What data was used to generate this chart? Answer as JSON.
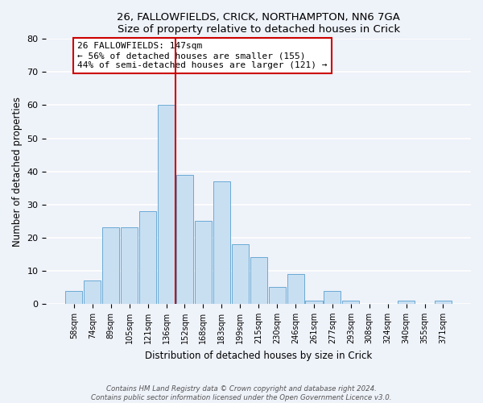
{
  "title_line1": "26, FALLOWFIELDS, CRICK, NORTHAMPTON, NN6 7GA",
  "title_line2": "Size of property relative to detached houses in Crick",
  "xlabel": "Distribution of detached houses by size in Crick",
  "ylabel": "Number of detached properties",
  "bar_labels": [
    "58sqm",
    "74sqm",
    "89sqm",
    "105sqm",
    "121sqm",
    "136sqm",
    "152sqm",
    "168sqm",
    "183sqm",
    "199sqm",
    "215sqm",
    "230sqm",
    "246sqm",
    "261sqm",
    "277sqm",
    "293sqm",
    "308sqm",
    "324sqm",
    "340sqm",
    "355sqm",
    "371sqm"
  ],
  "bar_values": [
    4,
    7,
    23,
    23,
    28,
    60,
    39,
    25,
    37,
    18,
    14,
    5,
    9,
    1,
    4,
    1,
    0,
    0,
    1,
    0,
    1
  ],
  "bar_color": "#c8dff2",
  "bar_edge_color": "#6aaad4",
  "vline_color": "#cc0000",
  "annotation_text": "26 FALLOWFIELDS: 147sqm\n← 56% of detached houses are smaller (155)\n44% of semi-detached houses are larger (121) →",
  "annotation_box_color": "#ffffff",
  "annotation_box_edge_color": "#cc0000",
  "ylim": [
    0,
    80
  ],
  "yticks": [
    0,
    10,
    20,
    30,
    40,
    50,
    60,
    70,
    80
  ],
  "footer_text": "Contains HM Land Registry data © Crown copyright and database right 2024.\nContains public sector information licensed under the Open Government Licence v3.0.",
  "background_color": "#eef2f9",
  "plot_bg_color": "#eef2f9",
  "grid_color": "#ffffff"
}
